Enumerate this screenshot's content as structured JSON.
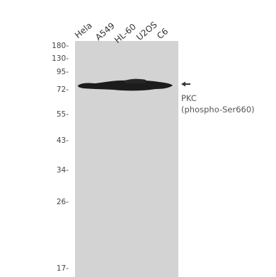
{
  "lanes": [
    "Hela",
    "A549",
    "HL-60",
    "U2OS",
    "C6"
  ],
  "mw_markers": [
    "180-",
    "130-",
    "95-",
    "72-",
    "55-",
    "43-",
    "34-",
    "26-",
    "17-"
  ],
  "target": {
    "name": "PKC",
    "modification": "(phospho-Ser660)",
    "arrow": "arrow-left-icon"
  },
  "colors": {
    "membrane": "#d3d3d3",
    "band": "#1c1c1c"
  }
}
